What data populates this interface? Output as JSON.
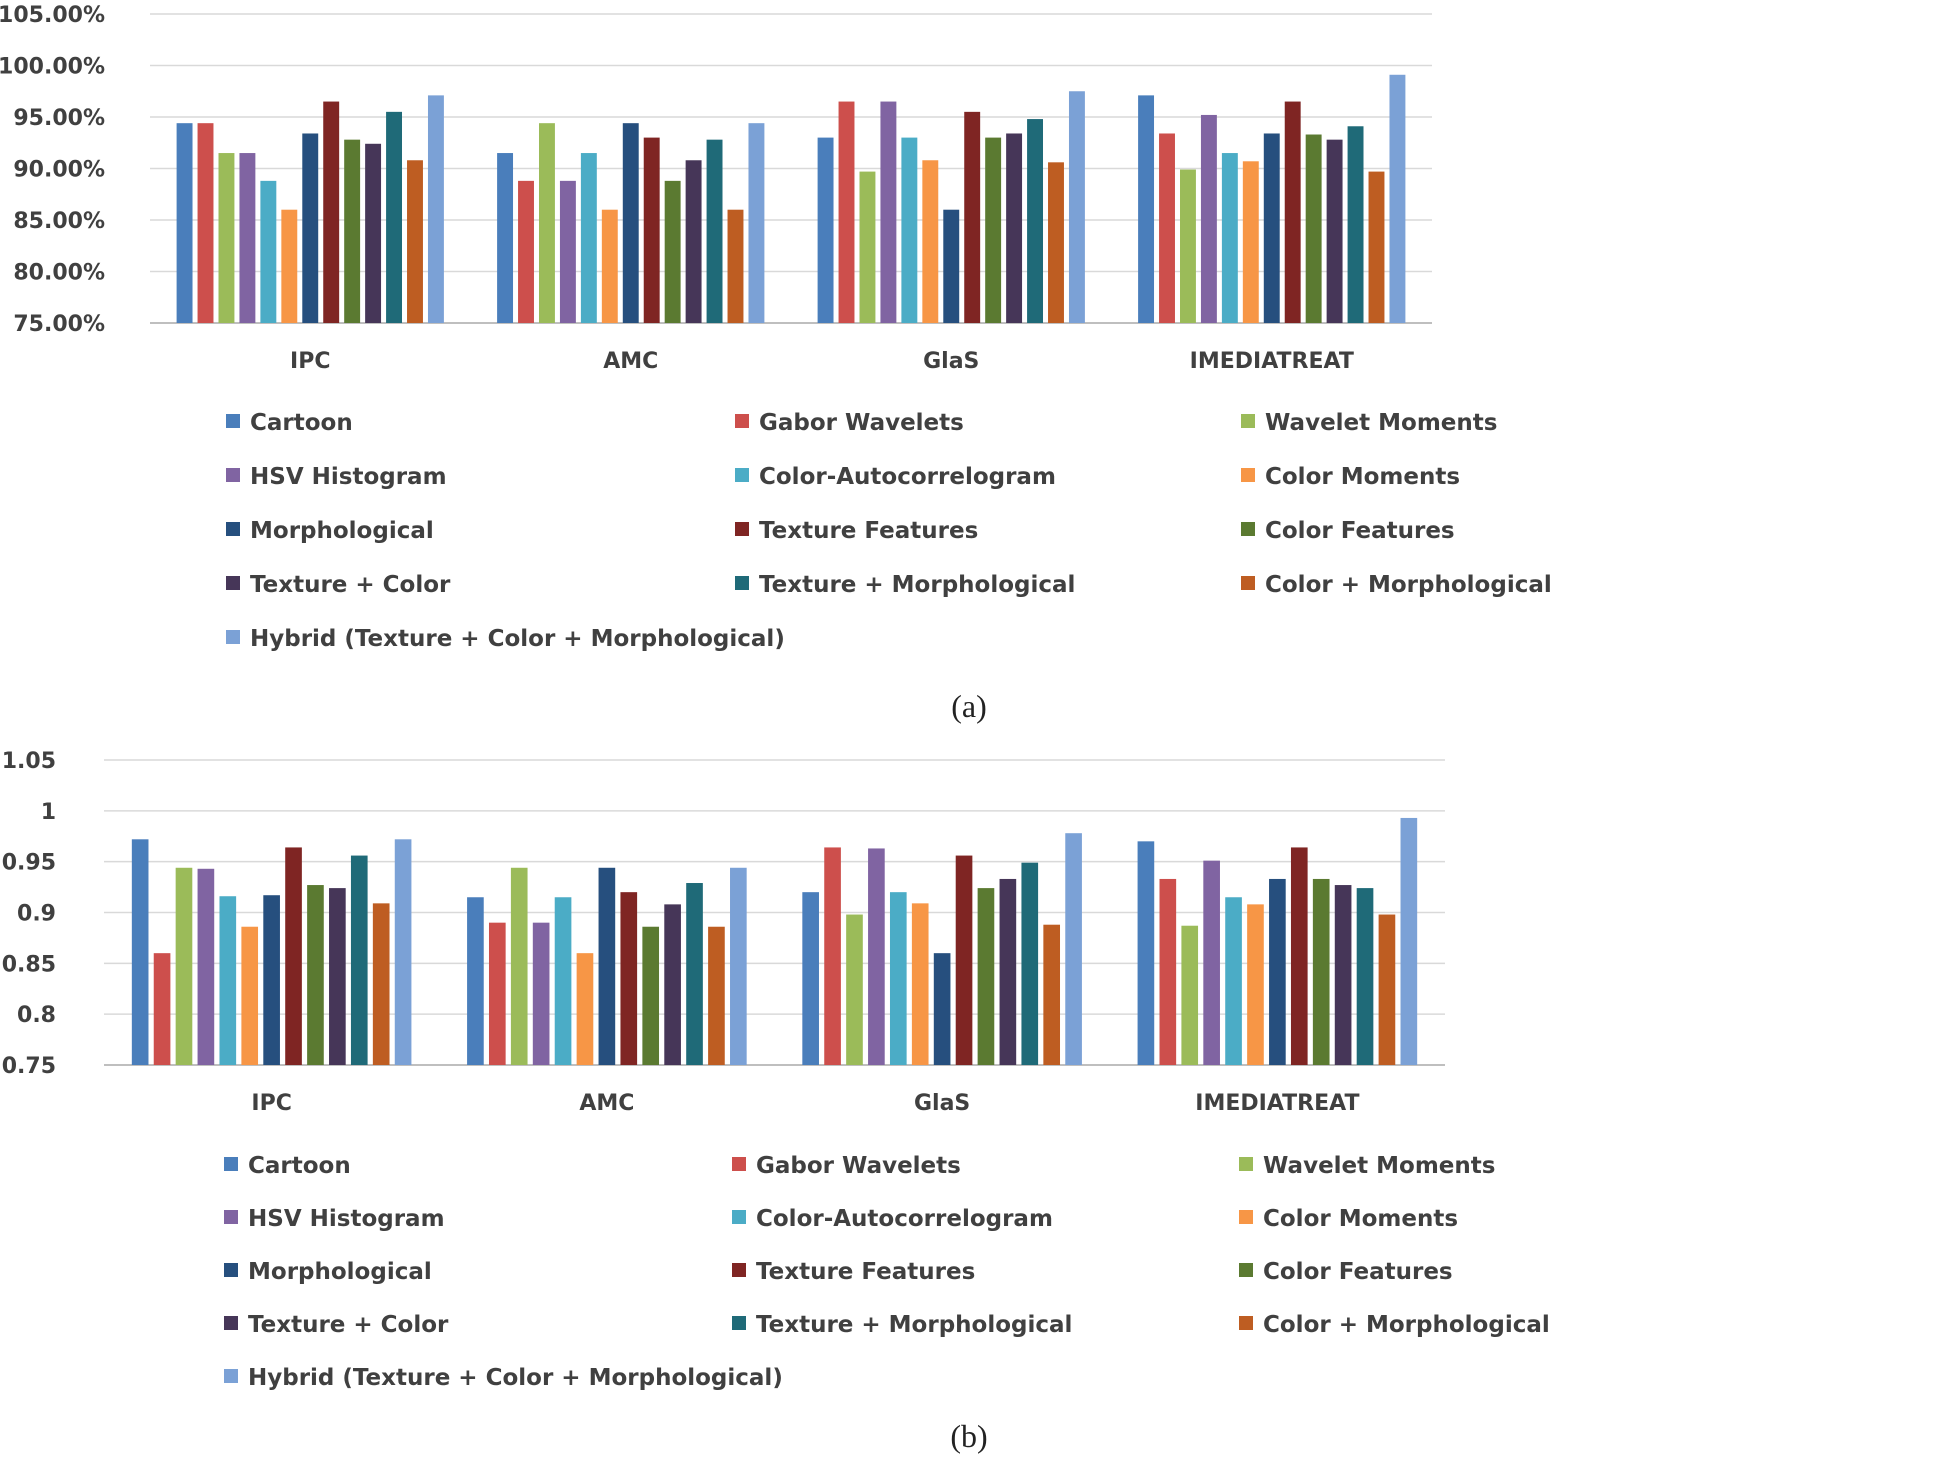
{
  "series_meta": [
    {
      "name": "Cartoon",
      "color": "#4a7ebb"
    },
    {
      "name": "Gabor Wavelets",
      "color": "#cd4f4c"
    },
    {
      "name": "Wavelet Moments",
      "color": "#9bbb59"
    },
    {
      "name": "HSV Histogram",
      "color": "#8064a2"
    },
    {
      "name": "Color-Autocorrelogram",
      "color": "#4bacc6"
    },
    {
      "name": "Color Moments",
      "color": "#f79646"
    },
    {
      "name": "Morphological",
      "color": "#264f7e"
    },
    {
      "name": "Texture Features",
      "color": "#7f2523"
    },
    {
      "name": "Color Features",
      "color": "#5b7a31"
    },
    {
      "name": "Texture + Color",
      "color": "#463658"
    },
    {
      "name": "Texture + Morphological",
      "color": "#1f6a78"
    },
    {
      "name": "Color + Morphological",
      "color": "#be5d22"
    },
    {
      "name": "Hybrid (Texture + Color + Morphological)",
      "color": "#7ba1d6"
    }
  ],
  "chart_data": [
    {
      "type": "bar",
      "caption": "(a)",
      "categories": [
        "IPC",
        "AMC",
        "GlaS",
        "IMEDIATREAT"
      ],
      "ylim": [
        0.75,
        1.05
      ],
      "yticks": [
        0.75,
        0.8,
        0.85,
        0.9,
        0.95,
        1.0,
        1.05
      ],
      "ytick_labels": [
        "75.00%",
        "80.00%",
        "85.00%",
        "90.00%",
        "95.00%",
        "100.00%",
        "105.00%"
      ],
      "series": [
        {
          "name": "Cartoon",
          "values": [
            0.944,
            0.915,
            0.93,
            0.971
          ]
        },
        {
          "name": "Gabor Wavelets",
          "values": [
            0.944,
            0.888,
            0.965,
            0.934
          ]
        },
        {
          "name": "Wavelet Moments",
          "values": [
            0.915,
            0.944,
            0.897,
            0.899
          ]
        },
        {
          "name": "HSV Histogram",
          "values": [
            0.915,
            0.888,
            0.965,
            0.952
          ]
        },
        {
          "name": "Color-Autocorrelogram",
          "values": [
            0.888,
            0.915,
            0.93,
            0.915
          ]
        },
        {
          "name": "Color Moments",
          "values": [
            0.86,
            0.86,
            0.908,
            0.907
          ]
        },
        {
          "name": "Morphological",
          "values": [
            0.934,
            0.944,
            0.86,
            0.934
          ]
        },
        {
          "name": "Texture Features",
          "values": [
            0.965,
            0.93,
            0.955,
            0.965
          ]
        },
        {
          "name": "Color Features",
          "values": [
            0.928,
            0.888,
            0.93,
            0.933
          ]
        },
        {
          "name": "Texture + Color",
          "values": [
            0.924,
            0.908,
            0.934,
            0.928
          ]
        },
        {
          "name": "Texture + Morphological",
          "values": [
            0.955,
            0.928,
            0.948,
            0.941
          ]
        },
        {
          "name": "Color + Morphological",
          "values": [
            0.908,
            0.86,
            0.906,
            0.897
          ]
        },
        {
          "name": "Hybrid (Texture + Color + Morphological)",
          "values": [
            0.971,
            0.944,
            0.975,
            0.991
          ]
        }
      ]
    },
    {
      "type": "bar",
      "caption": "(b)",
      "categories": [
        "IPC",
        "AMC",
        "GlaS",
        "IMEDIATREAT"
      ],
      "ylim": [
        0.75,
        1.05
      ],
      "yticks": [
        0.75,
        0.8,
        0.85,
        0.9,
        0.95,
        1.0,
        1.05
      ],
      "ytick_labels": [
        "0.75",
        "0.8",
        "0.85",
        "0.9",
        "0.95",
        "1",
        "1.05"
      ],
      "series": [
        {
          "name": "Cartoon",
          "values": [
            0.972,
            0.915,
            0.92,
            0.97
          ]
        },
        {
          "name": "Gabor Wavelets",
          "values": [
            0.86,
            0.89,
            0.964,
            0.933
          ]
        },
        {
          "name": "Wavelet Moments",
          "values": [
            0.944,
            0.944,
            0.898,
            0.887
          ]
        },
        {
          "name": "HSV Histogram",
          "values": [
            0.943,
            0.89,
            0.963,
            0.951
          ]
        },
        {
          "name": "Color-Autocorrelogram",
          "values": [
            0.916,
            0.915,
            0.92,
            0.915
          ]
        },
        {
          "name": "Color Moments",
          "values": [
            0.886,
            0.86,
            0.909,
            0.908
          ]
        },
        {
          "name": "Morphological",
          "values": [
            0.917,
            0.944,
            0.86,
            0.933
          ]
        },
        {
          "name": "Texture Features",
          "values": [
            0.964,
            0.92,
            0.956,
            0.964
          ]
        },
        {
          "name": "Color Features",
          "values": [
            0.927,
            0.886,
            0.924,
            0.933
          ]
        },
        {
          "name": "Texture + Color",
          "values": [
            0.924,
            0.908,
            0.933,
            0.927
          ]
        },
        {
          "name": "Texture + Morphological",
          "values": [
            0.956,
            0.929,
            0.949,
            0.924
          ]
        },
        {
          "name": "Color + Morphological",
          "values": [
            0.909,
            0.886,
            0.888,
            0.898
          ]
        },
        {
          "name": "Hybrid (Texture + Color + Morphological)",
          "values": [
            0.972,
            0.944,
            0.978,
            0.993
          ]
        }
      ]
    }
  ]
}
